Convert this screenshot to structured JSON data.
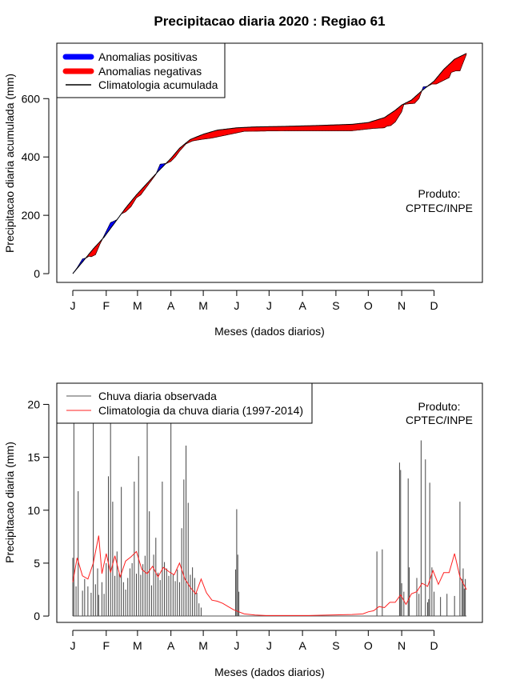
{
  "title": "Precipitacao diaria 2020 : Regiao 61",
  "chart_data": [
    {
      "type": "area",
      "ylabel": "Precipitacao diaria acumulada (mm)",
      "xlabel": "Meses (dados diarios)",
      "x_ticks": [
        "J",
        "F",
        "M",
        "A",
        "M",
        "J",
        "J",
        "A",
        "S",
        "O",
        "N",
        "D"
      ],
      "x_tick_days": [
        1,
        32,
        61,
        92,
        122,
        153,
        183,
        214,
        245,
        275,
        306,
        336
      ],
      "xlim": [
        1,
        366
      ],
      "ylim": [
        -30,
        790
      ],
      "y_ticks": [
        0,
        200,
        400,
        600
      ],
      "legend_position": "top-left",
      "legend": [
        {
          "label": "Anomalias positivas",
          "color": "#0000ff",
          "kind": "thick"
        },
        {
          "label": "Anomalias negativas",
          "color": "#ff0000",
          "kind": "thick"
        },
        {
          "label": "Climatologia acumulada",
          "color": "#000000",
          "kind": "line"
        }
      ],
      "annotation": [
        "Produto:",
        "CPTEC/INPE"
      ],
      "climatology_cumulative": {
        "days": [
          1,
          10,
          20,
          30,
          40,
          50,
          60,
          70,
          80,
          92,
          100,
          110,
          122,
          135,
          153,
          170,
          200,
          230,
          260,
          275,
          290,
          300,
          306,
          315,
          325,
          336,
          345,
          355,
          366
        ],
        "values": [
          0,
          40,
          85,
          125,
          175,
          225,
          270,
          310,
          350,
          395,
          430,
          460,
          478,
          492,
          500,
          503,
          505,
          508,
          512,
          518,
          535,
          560,
          578,
          595,
          628,
          660,
          700,
          735,
          755
        ]
      },
      "observed_cumulative": {
        "days": [
          1,
          5,
          10,
          14,
          16,
          18,
          22,
          26,
          30,
          34,
          36,
          38,
          42,
          46,
          50,
          55,
          60,
          64,
          66,
          70,
          74,
          78,
          82,
          88,
          92,
          96,
          100,
          106,
          112,
          120,
          130,
          160,
          200,
          240,
          260,
          280,
          290,
          292,
          296,
          300,
          306,
          308,
          312,
          318,
          322,
          326,
          330,
          334,
          338,
          350,
          352,
          356,
          360,
          366
        ],
        "values": [
          0,
          20,
          50,
          55,
          60,
          58,
          65,
          100,
          130,
          160,
          175,
          178,
          185,
          205,
          212,
          230,
          260,
          270,
          280,
          300,
          320,
          340,
          375,
          378,
          385,
          400,
          420,
          445,
          455,
          460,
          465,
          488,
          490,
          490,
          490,
          498,
          500,
          505,
          508,
          520,
          555,
          580,
          582,
          584,
          600,
          640,
          642,
          650,
          650,
          672,
          690,
          695,
          695,
          752
        ]
      }
    },
    {
      "type": "bar",
      "ylabel": "Precipitacao diaria (mm)",
      "xlabel": "Meses (dados diarios)",
      "x_ticks": [
        "J",
        "F",
        "M",
        "A",
        "M",
        "J",
        "J",
        "A",
        "S",
        "O",
        "N",
        "D"
      ],
      "x_tick_days": [
        1,
        32,
        61,
        92,
        122,
        153,
        183,
        214,
        245,
        275,
        306,
        336
      ],
      "xlim": [
        1,
        366
      ],
      "ylim": [
        -0.6,
        22
      ],
      "y_ticks": [
        0,
        5,
        10,
        15,
        20
      ],
      "legend_position": "top-left",
      "legend": [
        {
          "label": "Chuva diaria observada",
          "color": "#555555",
          "kind": "line"
        },
        {
          "label": "Climatologia da chuva diaria (1997-2014)",
          "color": "#ff2020",
          "kind": "line"
        }
      ],
      "annotation": [
        "Produto:",
        "CPTEC/INPE"
      ],
      "observed_daily_peaks": {
        "days": [
          1,
          2,
          4,
          6,
          10,
          12,
          15,
          18,
          20,
          22,
          24,
          25,
          28,
          30,
          32,
          34,
          36,
          38,
          40,
          42,
          44,
          46,
          48,
          50,
          52,
          54,
          56,
          58,
          60,
          62,
          64,
          66,
          68,
          70,
          72,
          74,
          76,
          78,
          80,
          82,
          84,
          86,
          88,
          90,
          92,
          94,
          96,
          98,
          100,
          102,
          104,
          106,
          108,
          110,
          112,
          114,
          116,
          118,
          120,
          152,
          153,
          154,
          155,
          283,
          288,
          304,
          305,
          306,
          308,
          312,
          313,
          320,
          322,
          324,
          328,
          330,
          331,
          332,
          334,
          336,
          342,
          348,
          355,
          360,
          362,
          363,
          364,
          365
        ],
        "values": [
          5.5,
          18.5,
          2.8,
          11.8,
          2.4,
          3.5,
          2.8,
          2.2,
          18.5,
          3,
          4.5,
          2,
          3.2,
          2.1,
          5,
          13.2,
          18.5,
          10.8,
          3.8,
          6.1,
          4.1,
          12.2,
          3.2,
          2.5,
          3.6,
          4.5,
          5,
          12.7,
          4,
          15.1,
          3.9,
          4.9,
          5.7,
          18.8,
          9.9,
          2.9,
          5.8,
          7.4,
          4.1,
          3.4,
          12.7,
          5.1,
          4.5,
          3.8,
          18.5,
          3.9,
          3.3,
          4.4,
          3.2,
          8.3,
          12.9,
          16.1,
          10.7,
          3.9,
          4.6,
          3.6,
          2.2,
          1.2,
          0.8,
          4.4,
          10.1,
          5.8,
          2.3,
          6.1,
          6.3,
          14.5,
          13.8,
          3.1,
          2.3,
          13,
          4.6,
          3.6,
          2.1,
          16.6,
          14.8,
          1.3,
          1.6,
          12.6,
          4.6,
          2.3,
          1.8,
          2.1,
          1.9,
          10.8,
          3.5,
          4.5,
          2.6,
          3.5
        ]
      },
      "climatology_daily": {
        "days": [
          1,
          5,
          10,
          15,
          20,
          25,
          28,
          32,
          36,
          40,
          45,
          50,
          55,
          60,
          65,
          70,
          75,
          80,
          85,
          90,
          95,
          100,
          105,
          110,
          115,
          120,
          125,
          130,
          135,
          140,
          145,
          150,
          155,
          160,
          170,
          180,
          200,
          220,
          240,
          260,
          270,
          275,
          280,
          285,
          290,
          295,
          300,
          305,
          310,
          315,
          320,
          325,
          330,
          335,
          340,
          345,
          350,
          355,
          360,
          366
        ],
        "values": [
          3.2,
          5.5,
          3.8,
          3.5,
          5.0,
          7.6,
          4.0,
          5.9,
          4.1,
          5.7,
          3.7,
          5.2,
          5.6,
          6.1,
          4.4,
          4.0,
          4.7,
          3.7,
          4.6,
          4.2,
          3.9,
          5.0,
          3.5,
          2.7,
          2.1,
          3.5,
          2.2,
          1.5,
          1.4,
          1.2,
          0.9,
          0.6,
          0.4,
          0.2,
          0.1,
          0.05,
          0.05,
          0.05,
          0.1,
          0.15,
          0.2,
          0.4,
          0.5,
          0.9,
          0.8,
          1.3,
          1.3,
          2.0,
          1.1,
          2.1,
          2.3,
          3.1,
          2.8,
          4.3,
          3.0,
          4.1,
          4.1,
          5.9,
          3.7,
          2.5
        ]
      }
    }
  ]
}
